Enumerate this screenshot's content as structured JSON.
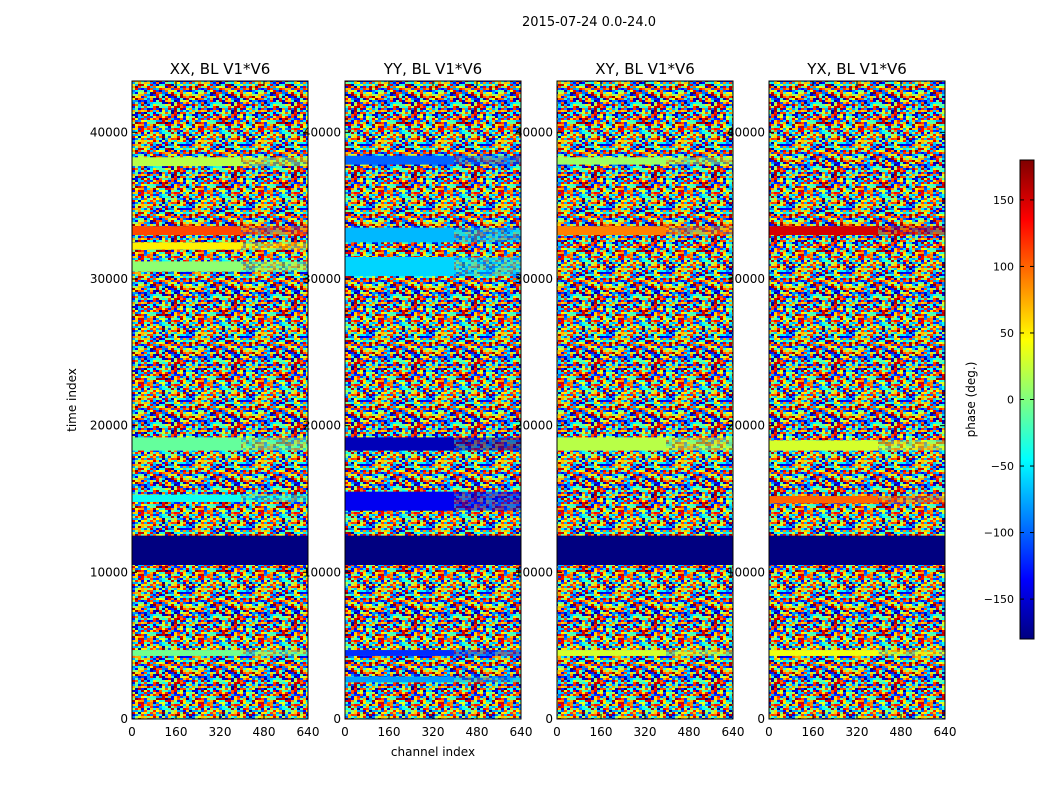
{
  "figure_title": "2015-07-24 0.0-24.0",
  "colormap": [
    "#000080",
    "#0000ff",
    "#0080ff",
    "#00ffff",
    "#80ff80",
    "#ffff00",
    "#ff8000",
    "#ff0000",
    "#800000"
  ],
  "chart_data": [
    {
      "type": "heatmap",
      "title": "XX, BL V1*V6",
      "xlabel": "",
      "ylabel": "time index",
      "xlim": [
        0,
        640
      ],
      "ylim": [
        0,
        43500
      ],
      "xticks": [
        0,
        160,
        320,
        480,
        640
      ],
      "yticks": [
        0,
        10000,
        20000,
        30000,
        40000
      ],
      "zlim": [
        -180,
        180
      ],
      "masked_time_range": [
        10500,
        12500
      ],
      "bands": [
        {
          "t0": 33000,
          "t1": 33600,
          "phase": 110
        },
        {
          "t0": 32000,
          "t1": 32500,
          "phase": 50
        },
        {
          "t0": 37700,
          "t1": 38300,
          "phase": 20
        },
        {
          "t0": 30500,
          "t1": 31200,
          "phase": 5
        },
        {
          "t0": 18300,
          "t1": 19200,
          "phase": -10
        },
        {
          "t0": 14800,
          "t1": 15300,
          "phase": -40
        },
        {
          "t0": 4300,
          "t1": 4700,
          "phase": -5
        }
      ]
    },
    {
      "type": "heatmap",
      "title": "YY, BL V1*V6",
      "xlabel": "channel index",
      "ylabel": "",
      "xlim": [
        0,
        640
      ],
      "ylim": [
        0,
        43500
      ],
      "xticks": [
        0,
        160,
        320,
        480,
        640
      ],
      "yticks": [
        0,
        10000,
        20000,
        30000,
        40000
      ],
      "zlim": [
        -180,
        180
      ],
      "masked_time_range": [
        10500,
        12500
      ],
      "bands": [
        {
          "t0": 37800,
          "t1": 38400,
          "phase": -100
        },
        {
          "t0": 32500,
          "t1": 33500,
          "phase": -70
        },
        {
          "t0": 30200,
          "t1": 31500,
          "phase": -60
        },
        {
          "t0": 18300,
          "t1": 19200,
          "phase": -160
        },
        {
          "t0": 14200,
          "t1": 15500,
          "phase": -140
        },
        {
          "t0": 4300,
          "t1": 4700,
          "phase": -120
        },
        {
          "t0": 2500,
          "t1": 2900,
          "phase": -80
        }
      ]
    },
    {
      "type": "heatmap",
      "title": "XY, BL V1*V6",
      "xlabel": "",
      "ylabel": "",
      "xlim": [
        0,
        640
      ],
      "ylim": [
        0,
        43500
      ],
      "xticks": [
        0,
        160,
        320,
        480,
        640
      ],
      "yticks": [
        0,
        10000,
        20000,
        30000,
        40000
      ],
      "zlim": [
        -180,
        180
      ],
      "masked_time_range": [
        10500,
        12500
      ],
      "bands": [
        {
          "t0": 33000,
          "t1": 33600,
          "phase": 90
        },
        {
          "t0": 37800,
          "t1": 38300,
          "phase": 10
        },
        {
          "t0": 18300,
          "t1": 19200,
          "phase": 20
        },
        {
          "t0": 4300,
          "t1": 4700,
          "phase": 30
        }
      ]
    },
    {
      "type": "heatmap",
      "title": "YX, BL V1*V6",
      "xlabel": "",
      "ylabel": "",
      "xlim": [
        0,
        640
      ],
      "ylim": [
        0,
        43500
      ],
      "xticks": [
        0,
        160,
        320,
        480,
        640
      ],
      "yticks": [
        0,
        10000,
        20000,
        30000,
        40000
      ],
      "zlim": [
        -180,
        180
      ],
      "masked_time_range": [
        10500,
        12500
      ],
      "bands": [
        {
          "t0": 33000,
          "t1": 33600,
          "phase": 150
        },
        {
          "t0": 14700,
          "t1": 15200,
          "phase": 100
        },
        {
          "t0": 18300,
          "t1": 19000,
          "phase": 30
        },
        {
          "t0": 4300,
          "t1": 4700,
          "phase": 40
        }
      ]
    }
  ],
  "colorbar": {
    "label": "phase (deg.)",
    "range": [
      -180,
      180
    ],
    "ticks": [
      150,
      100,
      50,
      0,
      -50,
      -100,
      -150
    ],
    "tick_labels": [
      "150",
      "100",
      "50",
      "0",
      "−50",
      "−100",
      "−150"
    ]
  }
}
